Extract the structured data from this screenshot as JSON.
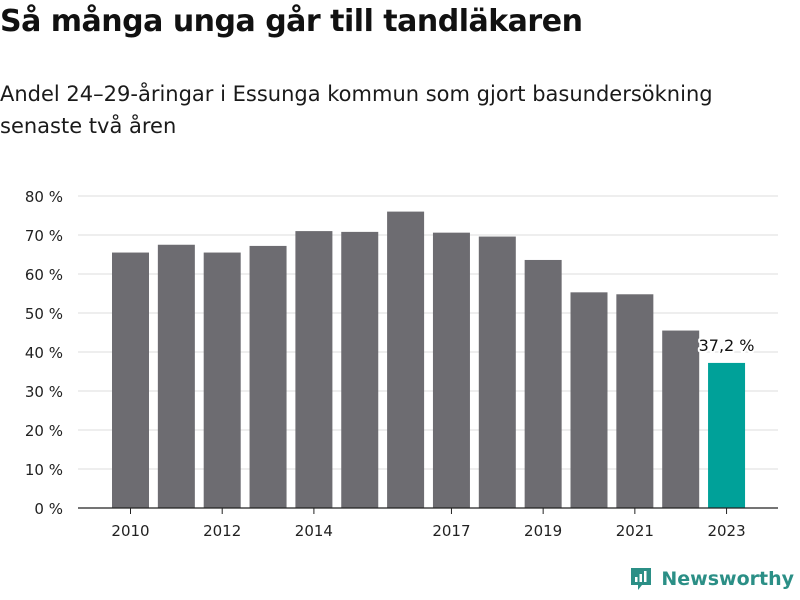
{
  "header": {
    "title": "Så många unga går till tandläkaren",
    "subtitle": "Andel 24–29-åringar i Essunga kommun som gjort basundersökning senaste två åren"
  },
  "brand": {
    "name": "Newsworthy",
    "icon": "newsworthy-logo-icon",
    "color": "#2b8f86"
  },
  "colors": {
    "bar": "#6d6c71",
    "highlight": "#00a199",
    "grid": "#dcdcdc",
    "axis": "#222222"
  },
  "chart_data": {
    "type": "bar",
    "categories": [
      "2010",
      "2011",
      "2012",
      "2013",
      "2014",
      "2015",
      "2016",
      "2017",
      "2018",
      "2019",
      "2020",
      "2021",
      "2022",
      "2023"
    ],
    "tick_labels": [
      "2010",
      "",
      "2012",
      "",
      "2014",
      "",
      "",
      "2017",
      "",
      "2019",
      "",
      "2021",
      "",
      "2023"
    ],
    "values": [
      65.5,
      67.5,
      65.5,
      67.2,
      71.0,
      70.8,
      76.0,
      70.6,
      69.6,
      63.6,
      55.3,
      54.8,
      45.5,
      37.2
    ],
    "highlight_index": 13,
    "data_labels": {
      "13": "37,2 %"
    },
    "ylim": [
      0,
      80
    ],
    "yticks": [
      0,
      10,
      20,
      30,
      40,
      50,
      60,
      70,
      80
    ],
    "ytick_labels": [
      "0 %",
      "10 %",
      "20 %",
      "30 %",
      "40 %",
      "50 %",
      "60 %",
      "70 %",
      "80 %"
    ],
    "grid": true,
    "xlabel": "",
    "ylabel": ""
  }
}
